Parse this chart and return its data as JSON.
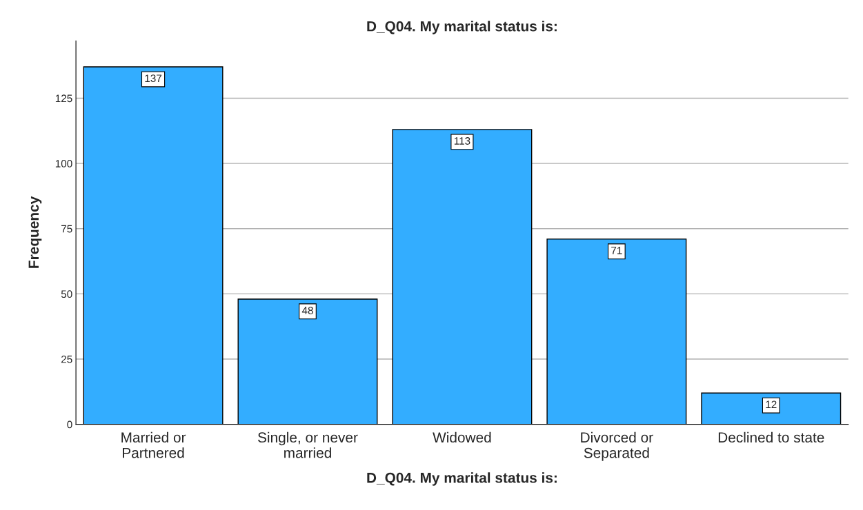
{
  "chart_data": {
    "type": "bar",
    "title": "D_Q04. My marital status is:",
    "xlabel": "D_Q04. My marital status is:",
    "ylabel": "Frequency",
    "categories": [
      "Married or\nPartnered",
      "Single, or never\nmarried",
      "Widowed",
      "Divorced or\nSeparated",
      "Declined to state"
    ],
    "values": [
      137,
      48,
      113,
      71,
      12
    ],
    "color": "#33adff",
    "ylim": [
      0,
      147
    ],
    "yticks": [
      0,
      25,
      50,
      75,
      100,
      125
    ],
    "grid": "y",
    "data_labels": true
  }
}
